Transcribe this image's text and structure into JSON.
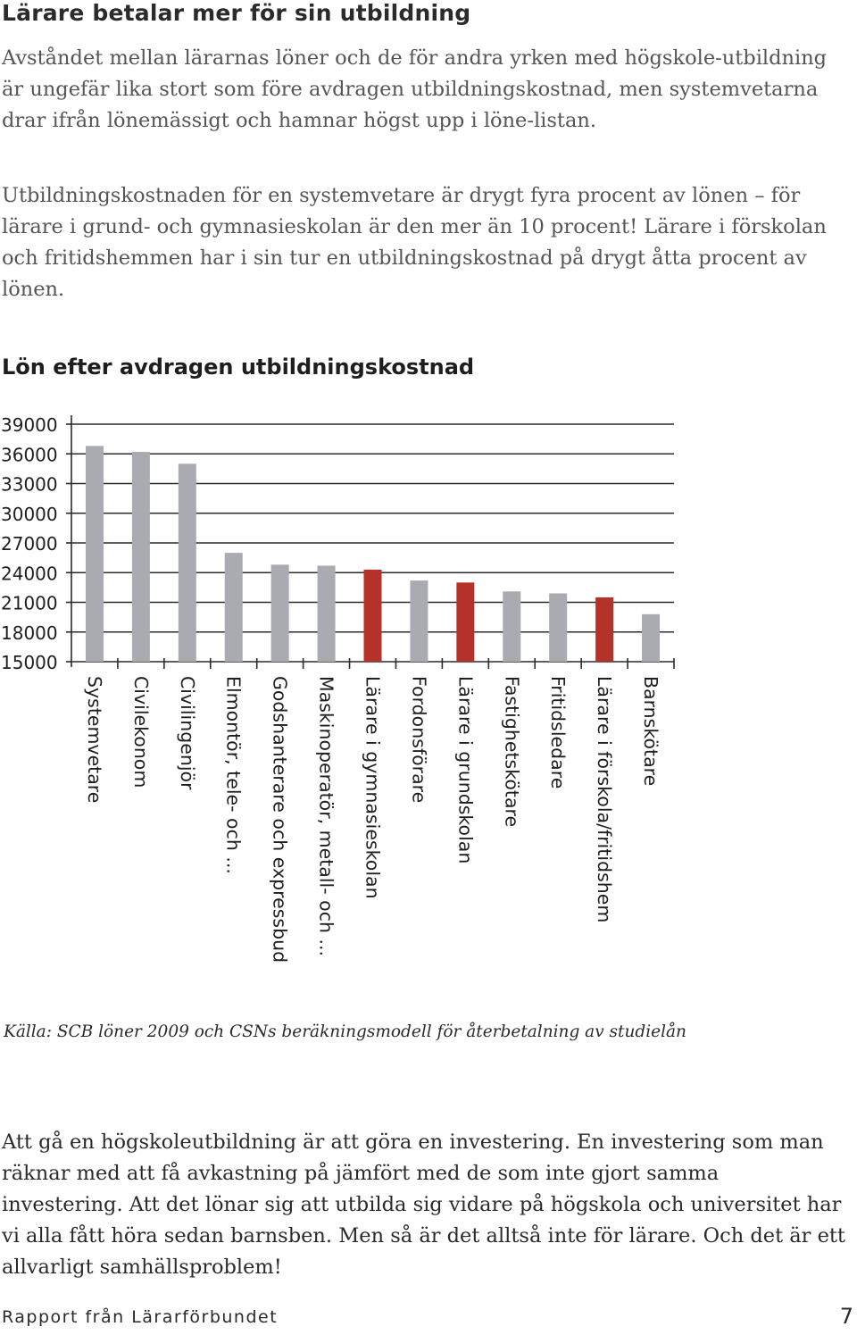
{
  "heading": "Lärare betalar mer för sin utbildning",
  "paragraphs": {
    "intro": "Avståndet mellan lärarnas löner och de för andra yrken med högskole-utbildning är ungefär lika stort som före avdragen utbildningskostnad, men systemvetarna drar ifrån lönemässigt och hamnar högst upp i löne-listan.",
    "cost": "Utbildningskostnaden för en systemvetare är drygt fyra procent av lönen – för lärare i grund- och gymnasieskolan är den mer än 10 procent! Lärare i förskolan och fritidshemmen har i sin tur en utbildningskostnad på drygt åtta procent av lönen.",
    "closing": "Att gå en högskoleutbildning är att göra en investering. En investering som man räknar med att få avkastning på jämfört med de som inte gjort samma investering. Att det lönar sig att utbilda sig vidare på högskola och universitet har vi alla fått höra sedan barnsben. Men så är det alltså inte för lärare. Och det är ett allvarligt samhällsproblem!"
  },
  "source": "Källa: SCB löner 2009 och CSNs beräkningsmodell för återbetalning av studielån",
  "footer": {
    "publisher": "Rapport från Lärarförbundet",
    "page_number": "7"
  },
  "chart_data": {
    "type": "bar",
    "title": "Lön efter avdragen utbildningskostnad",
    "xlabel": "",
    "ylabel": "",
    "ylim": [
      15000,
      39000
    ],
    "yticks": [
      "39000",
      "36000",
      "33000",
      "30000",
      "27000",
      "24000",
      "21000",
      "18000",
      "15000"
    ],
    "grid": true,
    "categories": [
      "Systemvetare",
      "Civilekonom",
      "Civilingenjör",
      "Elmontör, tele- och ...",
      "Godshanterare och expressbud",
      "Maskinoperatör, metall- och ...",
      "Lärare i gymnasieskolan",
      "Fordonsförare",
      "Lärare i grundskolan",
      "Fastighetskötare",
      "Fritidsledare",
      "Lärare i förskola/fritidshem",
      "Barnskötare"
    ],
    "values": [
      36800,
      36200,
      35000,
      26000,
      24800,
      24700,
      24300,
      23200,
      23000,
      22100,
      21900,
      21500,
      19800
    ],
    "highlight": [
      false,
      false,
      false,
      false,
      false,
      false,
      true,
      false,
      true,
      false,
      false,
      true,
      false
    ],
    "colors": {
      "default": "#a9abb0",
      "highlight": "#b5322a"
    }
  }
}
